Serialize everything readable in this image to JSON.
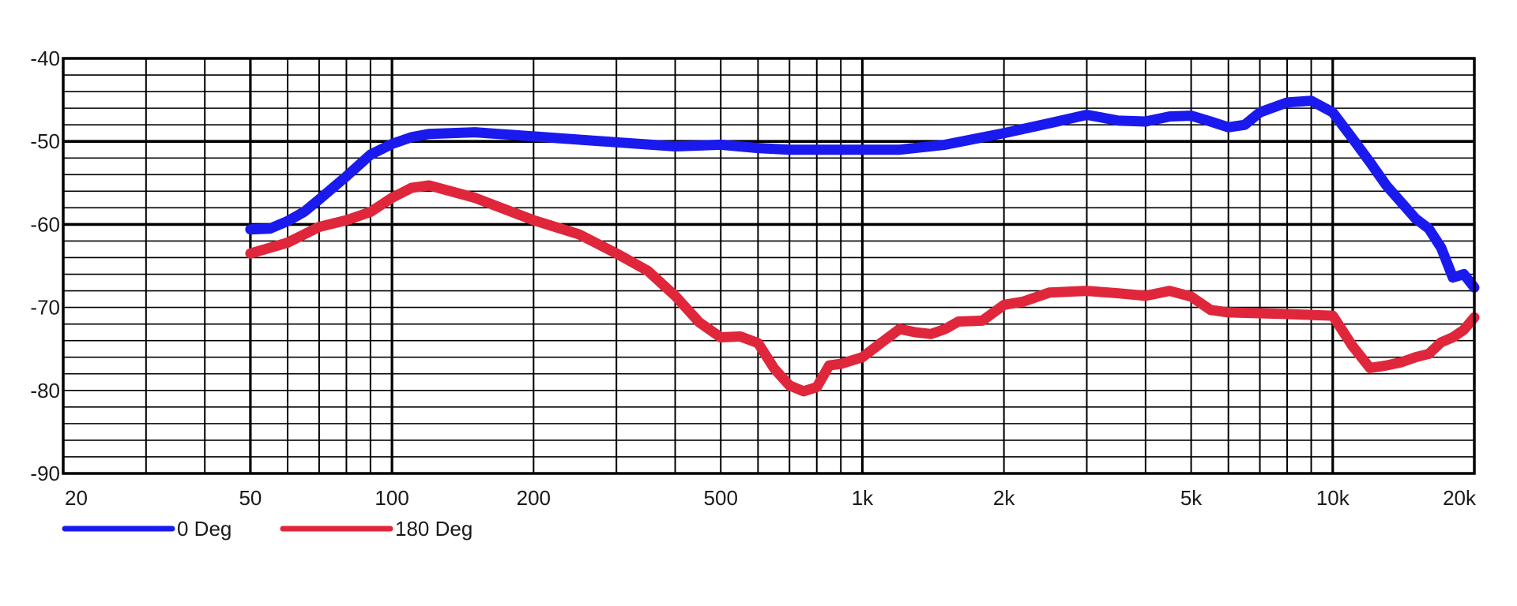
{
  "chart_data": {
    "type": "line",
    "title": "",
    "xlabel": "",
    "ylabel": "",
    "x_scale": "log",
    "xlim": [
      20,
      20000
    ],
    "ylim": [
      -90,
      -40
    ],
    "grid": true,
    "legend_position": "bottom-left",
    "x_ticks": [
      {
        "value": 20,
        "label": "20"
      },
      {
        "value": 50,
        "label": "50"
      },
      {
        "value": 100,
        "label": "100"
      },
      {
        "value": 200,
        "label": "200"
      },
      {
        "value": 500,
        "label": "500"
      },
      {
        "value": 1000,
        "label": "1k"
      },
      {
        "value": 2000,
        "label": "2k"
      },
      {
        "value": 5000,
        "label": "5k"
      },
      {
        "value": 10000,
        "label": "10k"
      },
      {
        "value": 20000,
        "label": "20k"
      }
    ],
    "y_ticks": [
      {
        "value": -40,
        "label": "-40"
      },
      {
        "value": -50,
        "label": "-50"
      },
      {
        "value": -60,
        "label": "-60"
      },
      {
        "value": -70,
        "label": "-70"
      },
      {
        "value": -80,
        "label": "-80"
      },
      {
        "value": -90,
        "label": "-90"
      }
    ],
    "series": [
      {
        "name": "0 Deg",
        "color": "#1a1aee",
        "points": [
          [
            50,
            -60.6
          ],
          [
            55,
            -60.5
          ],
          [
            60,
            -59.6
          ],
          [
            65,
            -58.5
          ],
          [
            70,
            -57.0
          ],
          [
            80,
            -54.2
          ],
          [
            90,
            -51.6
          ],
          [
            100,
            -50.3
          ],
          [
            110,
            -49.5
          ],
          [
            120,
            -49.1
          ],
          [
            150,
            -48.9
          ],
          [
            200,
            -49.4
          ],
          [
            300,
            -50.1
          ],
          [
            400,
            -50.6
          ],
          [
            500,
            -50.4
          ],
          [
            600,
            -50.8
          ],
          [
            700,
            -51.0
          ],
          [
            800,
            -51.0
          ],
          [
            1000,
            -51.0
          ],
          [
            1200,
            -51.0
          ],
          [
            1500,
            -50.4
          ],
          [
            2000,
            -49.0
          ],
          [
            2500,
            -47.8
          ],
          [
            3000,
            -46.8
          ],
          [
            3500,
            -47.5
          ],
          [
            4000,
            -47.6
          ],
          [
            4500,
            -47.0
          ],
          [
            5000,
            -46.9
          ],
          [
            5500,
            -47.6
          ],
          [
            6000,
            -48.3
          ],
          [
            6500,
            -48.0
          ],
          [
            7000,
            -46.5
          ],
          [
            8000,
            -45.3
          ],
          [
            9000,
            -45.1
          ],
          [
            10000,
            -46.5
          ],
          [
            11000,
            -49.6
          ],
          [
            12000,
            -52.5
          ],
          [
            13000,
            -55.3
          ],
          [
            15000,
            -59.3
          ],
          [
            16000,
            -60.5
          ],
          [
            17000,
            -62.8
          ],
          [
            18000,
            -66.4
          ],
          [
            19000,
            -66.0
          ],
          [
            20000,
            -67.6
          ]
        ]
      },
      {
        "name": "180 Deg",
        "color": "#e0263a",
        "points": [
          [
            50,
            -63.5
          ],
          [
            60,
            -62.2
          ],
          [
            70,
            -60.3
          ],
          [
            80,
            -59.5
          ],
          [
            90,
            -58.5
          ],
          [
            100,
            -56.8
          ],
          [
            110,
            -55.6
          ],
          [
            120,
            -55.3
          ],
          [
            150,
            -56.8
          ],
          [
            200,
            -59.5
          ],
          [
            250,
            -61.2
          ],
          [
            300,
            -63.5
          ],
          [
            350,
            -65.6
          ],
          [
            400,
            -68.6
          ],
          [
            450,
            -71.8
          ],
          [
            500,
            -73.6
          ],
          [
            550,
            -73.5
          ],
          [
            600,
            -74.3
          ],
          [
            650,
            -77.4
          ],
          [
            700,
            -79.4
          ],
          [
            750,
            -80.1
          ],
          [
            800,
            -79.6
          ],
          [
            850,
            -77.0
          ],
          [
            900,
            -76.8
          ],
          [
            1000,
            -76.0
          ],
          [
            1100,
            -74.2
          ],
          [
            1200,
            -72.6
          ],
          [
            1300,
            -73.0
          ],
          [
            1400,
            -73.2
          ],
          [
            1500,
            -72.6
          ],
          [
            1600,
            -71.7
          ],
          [
            1800,
            -71.6
          ],
          [
            2000,
            -69.7
          ],
          [
            2200,
            -69.3
          ],
          [
            2500,
            -68.2
          ],
          [
            3000,
            -68.0
          ],
          [
            3500,
            -68.3
          ],
          [
            4000,
            -68.6
          ],
          [
            4500,
            -68.0
          ],
          [
            5000,
            -68.7
          ],
          [
            5500,
            -70.3
          ],
          [
            6000,
            -70.6
          ],
          [
            7000,
            -70.7
          ],
          [
            8000,
            -70.8
          ],
          [
            9000,
            -70.9
          ],
          [
            10000,
            -71.0
          ],
          [
            11000,
            -74.6
          ],
          [
            12000,
            -77.3
          ],
          [
            13000,
            -77.0
          ],
          [
            14000,
            -76.6
          ],
          [
            15000,
            -76.0
          ],
          [
            16000,
            -75.6
          ],
          [
            17000,
            -74.2
          ],
          [
            18000,
            -73.6
          ],
          [
            19000,
            -72.7
          ],
          [
            20000,
            -71.2
          ]
        ]
      }
    ]
  }
}
